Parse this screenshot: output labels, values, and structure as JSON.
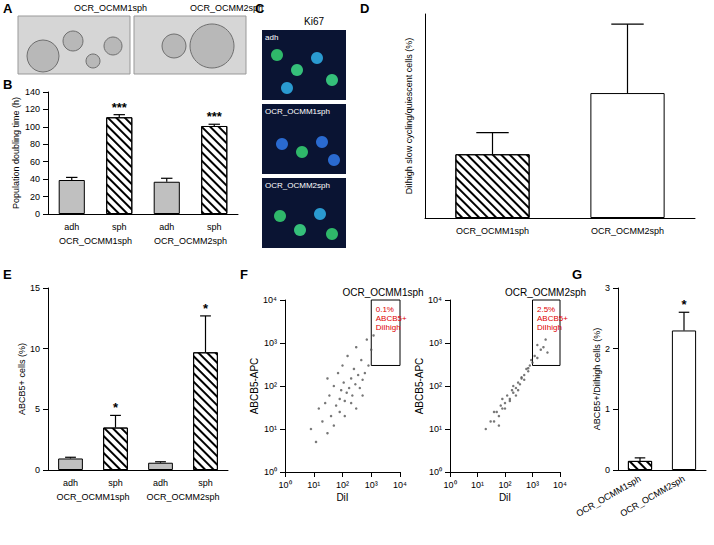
{
  "images": [
    {
      "panel": "A",
      "labels": [
        "OCR_OCMM1sph",
        "OCR_OCMM2sph"
      ]
    },
    {
      "panel": "C",
      "title": "Ki67",
      "labels": [
        "adh",
        "OCR_OCMM1sph",
        "OCR_OCMM2sph"
      ]
    }
  ],
  "chart_data": [
    {
      "type": "bar",
      "title": "B",
      "categories": [
        "adh",
        "sph",
        "adh",
        "sph"
      ],
      "groups": [
        "OCR_OCMM1sph",
        "OCR_OCMM2sph"
      ],
      "values": [
        39,
        111,
        37,
        101
      ],
      "errors": [
        3,
        3,
        4,
        2
      ],
      "significance": [
        null,
        "***",
        null,
        "***"
      ],
      "colors": [
        "#c0c0c0",
        "#ffffff",
        "#c0c0c0",
        "#ffffff"
      ],
      "y_label": "Population doubling time (h)",
      "ylim": [
        0,
        140
      ],
      "yticks": [
        0,
        20,
        40,
        60,
        80,
        100,
        120,
        140
      ]
    },
    {
      "type": "bar",
      "title": "D",
      "categories": [
        "OCR_OCMM1sph",
        "OCR_OCMM2sph"
      ],
      "values": [
        2.5,
        4.9
      ],
      "errors": [
        0.85,
        2.7
      ],
      "colors": [
        "#ffffff",
        "#ffffff"
      ],
      "y_label": "DiIhigh slow cycling/quiescent cells (%)",
      "ylim": [
        0,
        8
      ],
      "tick_labels": "x"
    },
    {
      "type": "bar",
      "title": "E",
      "categories": [
        "adh",
        "sph",
        "adh",
        "sph"
      ],
      "groups": [
        "OCR_OCMM1sph",
        "OCR_OCMM2sph"
      ],
      "values": [
        0.95,
        3.5,
        0.6,
        9.7
      ],
      "errors": [
        0.1,
        1.0,
        0.08,
        3.0
      ],
      "significance": [
        null,
        "*",
        null,
        "*"
      ],
      "colors": [
        "#c0c0c0",
        "#ffffff",
        "#c0c0c0",
        "#ffffff"
      ],
      "y_label": "ABCB5+ cells (%)",
      "ylim": [
        0,
        15
      ],
      "yticks": [
        0,
        5,
        10,
        15
      ]
    },
    {
      "type": "scatter",
      "title": "F",
      "subtitle": "OCR_OCMM1sph",
      "x_label": "DiI",
      "y_label": "ABCB5-APC",
      "log": true,
      "color": "#555555",
      "x": [
        8,
        12,
        15,
        20,
        25,
        30,
        35,
        40,
        50,
        60,
        70,
        80,
        90,
        100,
        110,
        120,
        140,
        150,
        170,
        200,
        220,
        250,
        280,
        300,
        350,
        400,
        450,
        500,
        600,
        700,
        800,
        1000,
        1200,
        30,
        50,
        80,
        120,
        200,
        300,
        500
      ],
      "y": [
        10,
        5,
        30,
        15,
        40,
        8,
        60,
        20,
        100,
        35,
        200,
        50,
        80,
        300,
        120,
        45,
        70,
        500,
        90,
        150,
        60,
        250,
        110,
        800,
        180,
        90,
        400,
        140,
        200,
        1200,
        300,
        700,
        1500,
        150,
        12,
        25,
        20,
        40,
        30,
        60
      ],
      "gate": {
        "x": [
          1000,
          10000
        ],
        "y": [
          300,
          10000
        ]
      },
      "annotation": [
        "0.1%",
        "ABCB5+",
        "DiIhigh"
      ],
      "xlim": [
        1,
        10000
      ],
      "ylim": [
        1,
        10000
      ],
      "xticks": [
        {
          "value": 1,
          "label": "10⁰"
        },
        {
          "value": 10,
          "label": "10¹"
        },
        {
          "value": 100,
          "label": "10²"
        },
        {
          "value": 1000,
          "label": "10³"
        },
        {
          "value": 10000,
          "label": "10⁴"
        }
      ],
      "yticks": [
        {
          "value": 1,
          "label": "10⁰"
        },
        {
          "value": 10,
          "label": "10¹"
        },
        {
          "value": 100,
          "label": "10²"
        },
        {
          "value": 1000,
          "label": "10³"
        },
        {
          "value": 10000,
          "label": "10⁴"
        }
      ]
    },
    {
      "type": "scatter",
      "subtitle": "OCR_OCMM2sph",
      "x_label": "DiI",
      "y_label": "ABCB5-APC",
      "log": true,
      "color": "#555555",
      "x": [
        20,
        30,
        40,
        50,
        60,
        70,
        80,
        100,
        120,
        150,
        180,
        200,
        250,
        300,
        350,
        400,
        500,
        600,
        700,
        800,
        1000,
        1200,
        1500,
        2000,
        2500,
        3000,
        100,
        150,
        200,
        300,
        400,
        500,
        700,
        900,
        60,
        80,
        250,
        1500,
        40,
        3500
      ],
      "y": [
        10,
        15,
        15,
        25,
        20,
        35,
        30,
        40,
        60,
        50,
        80,
        70,
        90,
        120,
        110,
        160,
        180,
        250,
        220,
        300,
        350,
        500,
        450,
        700,
        800,
        1200,
        30,
        45,
        100,
        80,
        150,
        140,
        260,
        400,
        12,
        50,
        60,
        900,
        25,
        600
      ],
      "gate": {
        "x": [
          1000,
          10000
        ],
        "y": [
          300,
          10000
        ]
      },
      "annotation": [
        "2.5%",
        "ABCB5+",
        "DiIhigh"
      ],
      "xlim": [
        1,
        10000
      ],
      "ylim": [
        1,
        10000
      ],
      "xticks": [
        {
          "value": 1,
          "label": "10⁰"
        },
        {
          "value": 10,
          "label": "10¹"
        },
        {
          "value": 100,
          "label": "10²"
        },
        {
          "value": 1000,
          "label": "10³"
        },
        {
          "value": 10000,
          "label": "10⁴"
        }
      ],
      "yticks": [
        {
          "value": 1,
          "label": "10⁰"
        },
        {
          "value": 10,
          "label": "10¹"
        },
        {
          "value": 100,
          "label": "10²"
        },
        {
          "value": 1000,
          "label": "10³"
        },
        {
          "value": 10000,
          "label": "10⁴"
        }
      ]
    },
    {
      "type": "bar",
      "title": "G",
      "categories": [
        "OCR_OCMM1sph",
        "OCR_OCMM2sph"
      ],
      "values": [
        0.15,
        2.3
      ],
      "errors": [
        0.05,
        0.3
      ],
      "significance": [
        null,
        "*"
      ],
      "colors": [
        "#ffffff",
        "#ffffff"
      ],
      "y_label": "ABCB5+/DiIhigh cells (%)",
      "ylim": [
        0,
        3
      ],
      "yticks": [
        0,
        1,
        2,
        3
      ]
    }
  ]
}
